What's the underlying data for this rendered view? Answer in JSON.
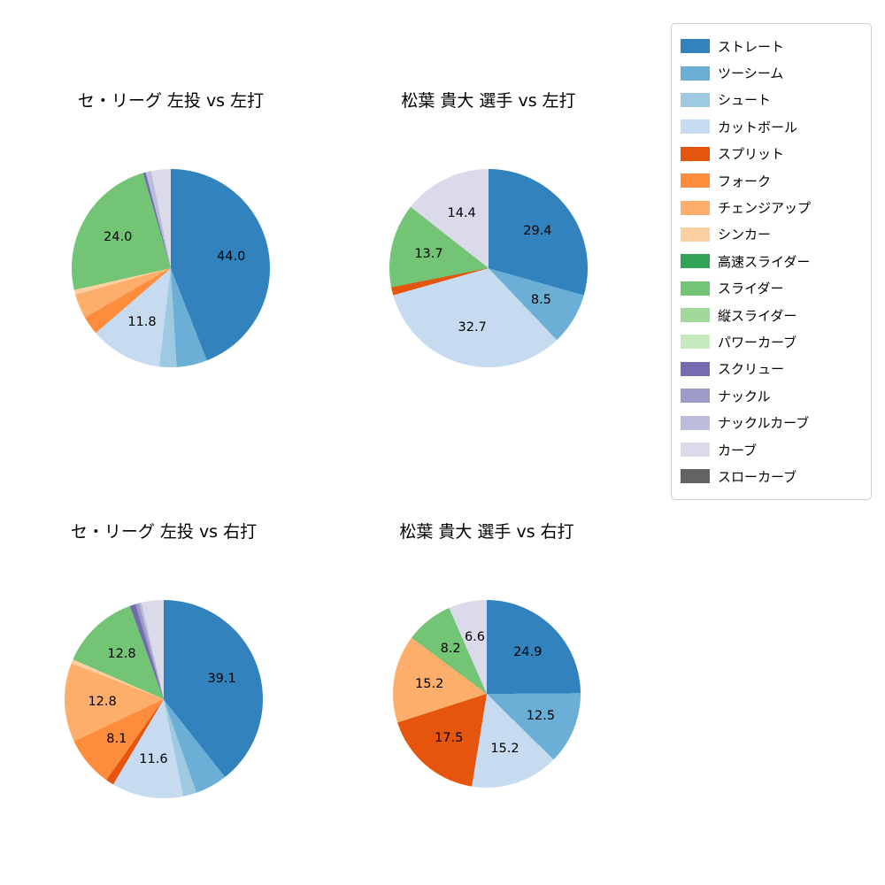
{
  "legend": {
    "position": "upper right",
    "items": [
      {
        "label": "ストレート",
        "color": "#3182bd"
      },
      {
        "label": "ツーシーム",
        "color": "#6baed6"
      },
      {
        "label": "シュート",
        "color": "#9ecae1"
      },
      {
        "label": "カットボール",
        "color": "#c6dbef"
      },
      {
        "label": "スプリット",
        "color": "#e6550d"
      },
      {
        "label": "フォーク",
        "color": "#fd8d3c"
      },
      {
        "label": "チェンジアップ",
        "color": "#fdae6b"
      },
      {
        "label": "シンカー",
        "color": "#fdd0a2"
      },
      {
        "label": "高速スライダー",
        "color": "#31a354"
      },
      {
        "label": "スライダー",
        "color": "#74c476"
      },
      {
        "label": "縦スライダー",
        "color": "#a1d99b"
      },
      {
        "label": "パワーカーブ",
        "color": "#c7e9c0"
      },
      {
        "label": "スクリュー",
        "color": "#756bb1"
      },
      {
        "label": "ナックル",
        "color": "#9e9ac8"
      },
      {
        "label": "ナックルカーブ",
        "color": "#bcbddc"
      },
      {
        "label": "カーブ",
        "color": "#dadaeb"
      },
      {
        "label": "スローカーブ",
        "color": "#636363"
      }
    ]
  },
  "chart_data": [
    {
      "type": "pie",
      "title": "セ・リーグ 左投 vs 左打",
      "start_angle": "top",
      "direction": "clockwise",
      "slices": [
        {
          "label": "ストレート",
          "value": 44.0,
          "display": "44.0"
        },
        {
          "label": "ツーシーム",
          "value": 5.0
        },
        {
          "label": "シュート",
          "value": 2.8
        },
        {
          "label": "カットボール",
          "value": 11.8,
          "display": "11.8"
        },
        {
          "label": "フォーク",
          "value": 3.0
        },
        {
          "label": "チェンジアップ",
          "value": 4.0
        },
        {
          "label": "シンカー",
          "value": 0.8
        },
        {
          "label": "スライダー",
          "value": 24.0,
          "display": "24.0"
        },
        {
          "label": "スクリュー",
          "value": 0.4
        },
        {
          "label": "ナックルカーブ",
          "value": 0.9
        },
        {
          "label": "カーブ",
          "value": 3.2
        }
      ]
    },
    {
      "type": "pie",
      "title": "松葉 貴大 選手 vs 左打",
      "start_angle": "top",
      "direction": "clockwise",
      "slices": [
        {
          "label": "ストレート",
          "value": 29.4,
          "display": "29.4"
        },
        {
          "label": "ツーシーム",
          "value": 8.5,
          "display": "8.5"
        },
        {
          "label": "カットボール",
          "value": 32.7,
          "display": "32.7"
        },
        {
          "label": "スプリット",
          "value": 1.3
        },
        {
          "label": "スライダー",
          "value": 13.7,
          "display": "13.7"
        },
        {
          "label": "カーブ",
          "value": 14.4,
          "display": "14.4"
        }
      ]
    },
    {
      "type": "pie",
      "title": "セ・リーグ 左投 vs 右打",
      "start_angle": "top",
      "direction": "clockwise",
      "slices": [
        {
          "label": "ストレート",
          "value": 39.1,
          "display": "39.1"
        },
        {
          "label": "ツーシーム",
          "value": 5.2
        },
        {
          "label": "シュート",
          "value": 2.2
        },
        {
          "label": "カットボール",
          "value": 11.6,
          "display": "11.6"
        },
        {
          "label": "スプリット",
          "value": 1.3
        },
        {
          "label": "フォーク",
          "value": 8.1,
          "display": "8.1"
        },
        {
          "label": "チェンジアップ",
          "value": 12.8,
          "display": "12.8"
        },
        {
          "label": "シンカー",
          "value": 0.7
        },
        {
          "label": "スライダー",
          "value": 12.8,
          "display": "12.8"
        },
        {
          "label": "スクリュー",
          "value": 0.9
        },
        {
          "label": "ナックル",
          "value": 0.6
        },
        {
          "label": "ナックルカーブ",
          "value": 0.4
        },
        {
          "label": "カーブ",
          "value": 3.6
        }
      ]
    },
    {
      "type": "pie",
      "title": "松葉 貴大 選手 vs 右打",
      "start_angle": "top",
      "direction": "clockwise",
      "slices": [
        {
          "label": "ストレート",
          "value": 24.9,
          "display": "24.9"
        },
        {
          "label": "ツーシーム",
          "value": 12.5,
          "display": "12.5"
        },
        {
          "label": "カットボール",
          "value": 15.2,
          "display": "15.2"
        },
        {
          "label": "スプリット",
          "value": 17.5,
          "display": "17.5"
        },
        {
          "label": "チェンジアップ",
          "value": 15.2,
          "display": "15.2"
        },
        {
          "label": "スライダー",
          "value": 8.2,
          "display": "8.2"
        },
        {
          "label": "カーブ",
          "value": 6.6,
          "display": "6.6"
        }
      ]
    }
  ]
}
